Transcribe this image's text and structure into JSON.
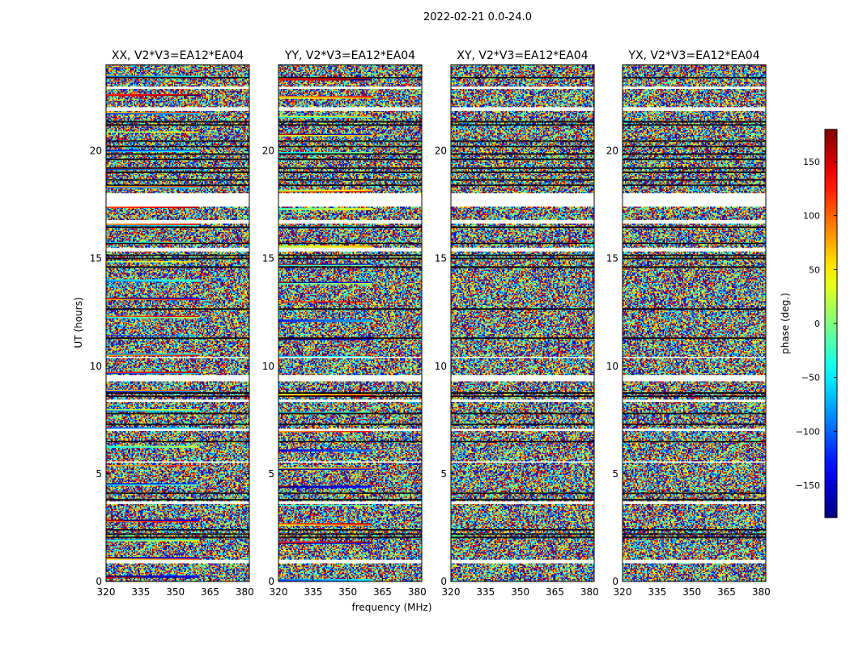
{
  "suptitle": "2022-02-21 0.0-24.0",
  "chart_data": {
    "type": "heatmap",
    "title": "2022-02-21 0.0-24.0",
    "xlabel": "frequency (MHz)",
    "ylabel": "UT (hours)",
    "xlim": [
      320,
      382
    ],
    "ylim": [
      0,
      24
    ],
    "xticks": [
      320,
      335,
      350,
      365,
      380
    ],
    "yticks": [
      0,
      5,
      10,
      15,
      20
    ],
    "colorbar": {
      "label": "phase (deg.)",
      "range": [
        -180,
        180
      ],
      "ticks": [
        150,
        100,
        50,
        0,
        -50,
        -100,
        -150
      ],
      "tick_labels": [
        "150",
        "100",
        "50",
        "0",
        "−50",
        "−100",
        "−150"
      ],
      "colormap": "jet",
      "colors": [
        "#000080",
        "#0000ff",
        "#00ffff",
        "#7fff7f",
        "#ffff00",
        "#ff0000",
        "#800000"
      ]
    },
    "panels": [
      {
        "title": "XX, V2*V3=EA12*EA04",
        "polarization": "XX"
      },
      {
        "title": "YY, V2*V3=EA12*EA04",
        "polarization": "YY"
      },
      {
        "title": "XY, V2*V3=EA12*EA04",
        "polarization": "XY"
      },
      {
        "title": "YX, V2*V3=EA12*EA04",
        "polarization": "YX"
      }
    ],
    "flagged_ut_ranges": [
      [
        0.85,
        1.0
      ],
      [
        3.6,
        3.7
      ],
      [
        5.5,
        5.6
      ],
      [
        7.0,
        7.1
      ],
      [
        8.35,
        8.45
      ],
      [
        9.3,
        9.6
      ],
      [
        10.35,
        10.45
      ],
      [
        15.3,
        15.5
      ],
      [
        16.6,
        16.8
      ],
      [
        17.4,
        18.0
      ],
      [
        21.85,
        22.0
      ],
      [
        22.9,
        23.0
      ]
    ],
    "dark_ut_bands": [
      2.05,
      2.2,
      2.4,
      3.8,
      4.1,
      6.5,
      7.3,
      7.8,
      8.6,
      8.75,
      11.3,
      12.65,
      14.6,
      15.0,
      15.15,
      15.7,
      16.45,
      18.4,
      18.65,
      19.0,
      19.2,
      19.6,
      19.85,
      20.2,
      20.45,
      21.2,
      21.35,
      23.4
    ]
  }
}
